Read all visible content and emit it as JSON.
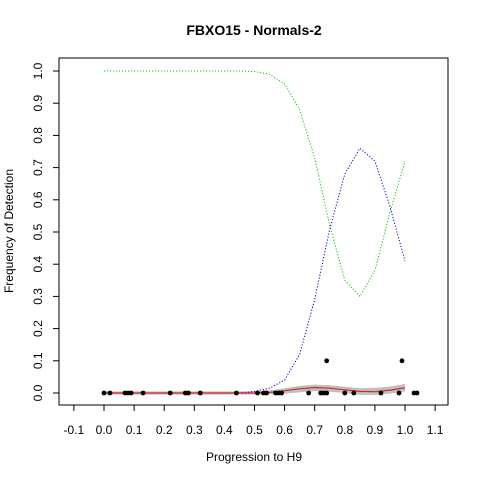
{
  "chart_data": {
    "type": "scatter",
    "title": "FBXO15 - Normals-2",
    "xlabel": "Progression to H9",
    "ylabel": "Frequency of Detection",
    "xlim": [
      -0.1,
      1.1
    ],
    "ylim": [
      0.0,
      1.0
    ],
    "x_ticks": [
      "-0.1",
      "0.0",
      "0.1",
      "0.2",
      "0.3",
      "0.4",
      "0.5",
      "0.6",
      "0.7",
      "0.8",
      "0.9",
      "1.0",
      "1.1"
    ],
    "y_ticks": [
      "0.0",
      "0.1",
      "0.2",
      "0.3",
      "0.4",
      "0.5",
      "0.6",
      "0.7",
      "0.8",
      "0.9",
      "1.0"
    ],
    "grid": false,
    "points": {
      "color": "#000000",
      "x": [
        0.0,
        0.02,
        0.07,
        0.08,
        0.09,
        0.13,
        0.22,
        0.27,
        0.28,
        0.32,
        0.44,
        0.51,
        0.53,
        0.54,
        0.57,
        0.58,
        0.59,
        0.68,
        0.72,
        0.73,
        0.74,
        0.74,
        0.8,
        0.83,
        0.92,
        0.98,
        0.99,
        1.03,
        1.04
      ],
      "y": [
        0,
        0,
        0,
        0,
        0,
        0,
        0,
        0,
        0,
        0,
        0,
        0,
        0,
        0,
        0,
        0,
        0,
        0,
        0,
        0,
        0.1,
        0,
        0,
        0,
        0,
        0,
        0.1,
        0,
        0
      ]
    },
    "series": [
      {
        "style": "dotted",
        "color": "#00cc00",
        "x": [
          0.0,
          0.1,
          0.2,
          0.3,
          0.4,
          0.45,
          0.5,
          0.55,
          0.6,
          0.65,
          0.7,
          0.75,
          0.8,
          0.85,
          0.9,
          0.95,
          1.0
        ],
        "y": [
          1.0,
          1.0,
          1.0,
          1.0,
          1.0,
          1.0,
          0.998,
          0.99,
          0.96,
          0.88,
          0.73,
          0.52,
          0.35,
          0.3,
          0.38,
          0.56,
          0.72
        ]
      },
      {
        "style": "dotted",
        "color": "#0000cc",
        "x": [
          0.0,
          0.1,
          0.2,
          0.3,
          0.4,
          0.45,
          0.5,
          0.55,
          0.6,
          0.65,
          0.7,
          0.75,
          0.8,
          0.85,
          0.9,
          0.95,
          1.0
        ],
        "y": [
          0.0,
          0.0,
          0.0,
          0.0,
          0.0,
          0.0,
          0.005,
          0.015,
          0.04,
          0.12,
          0.29,
          0.51,
          0.68,
          0.76,
          0.72,
          0.58,
          0.41
        ]
      },
      {
        "style": "solid",
        "color": "#d62728",
        "x": [
          0.0,
          0.1,
          0.2,
          0.3,
          0.4,
          0.5,
          0.55,
          0.6,
          0.65,
          0.7,
          0.75,
          0.8,
          0.85,
          0.9,
          0.95,
          1.0
        ],
        "y": [
          0.0,
          0.0,
          0.0,
          0.0,
          0.0,
          0.0,
          0.002,
          0.007,
          0.013,
          0.017,
          0.015,
          0.01,
          0.005,
          0.004,
          0.009,
          0.016
        ]
      }
    ],
    "band": {
      "color": "#bfbfbf",
      "x": [
        0.0,
        0.1,
        0.2,
        0.3,
        0.4,
        0.5,
        0.55,
        0.6,
        0.65,
        0.7,
        0.75,
        0.8,
        0.85,
        0.9,
        0.95,
        1.0
      ],
      "lower": [
        -0.005,
        -0.005,
        -0.005,
        -0.005,
        -0.005,
        -0.005,
        -0.004,
        -0.002,
        0.002,
        0.006,
        0.004,
        0.0,
        -0.006,
        -0.006,
        -0.002,
        0.005
      ],
      "upper": [
        0.005,
        0.005,
        0.005,
        0.005,
        0.005,
        0.005,
        0.008,
        0.015,
        0.022,
        0.026,
        0.024,
        0.02,
        0.015,
        0.016,
        0.02,
        0.028
      ]
    }
  }
}
